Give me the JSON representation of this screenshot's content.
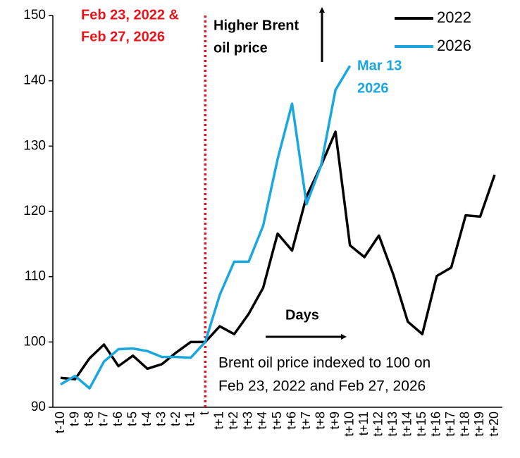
{
  "chart_data": {
    "type": "line",
    "categories": [
      "t-10",
      "t-9",
      "t-8",
      "t-7",
      "t-6",
      "t-5",
      "t-4",
      "t-3",
      "t-2",
      "t-1",
      "t",
      "t+1",
      "t+2",
      "t+3",
      "t+4",
      "t+5",
      "t+6",
      "t+7",
      "t+8",
      "t+9",
      "t+10",
      "t+11",
      "t+12",
      "t+13",
      "t+14",
      "t+15",
      "t+16",
      "t+17",
      "t+18",
      "t+19",
      "t+20"
    ],
    "series": [
      {
        "name": "2022",
        "color": "#000000",
        "values": [
          94.5,
          94.3,
          97.5,
          99.6,
          96.3,
          97.9,
          95.9,
          96.6,
          98.4,
          100,
          100,
          102.4,
          101.2,
          104.3,
          108.3,
          116.6,
          114,
          122.3,
          127,
          132.2,
          114.8,
          113,
          116.3,
          110.3,
          103.1,
          101.2,
          110.1,
          111.4,
          119.4,
          119.2,
          125.6
        ]
      },
      {
        "name": "2026",
        "color": "#1aa7e0",
        "values": [
          93.5,
          94.8,
          92.9,
          97,
          98.9,
          99,
          98.6,
          97.7,
          97.7,
          97.6,
          100,
          107.2,
          112.3,
          112.3,
          117.8,
          128,
          136.5,
          121.1,
          127,
          138.6,
          142.3,
          null,
          null,
          null,
          null,
          null,
          null,
          null,
          null,
          null,
          null
        ]
      }
    ],
    "ylim": [
      90,
      150
    ],
    "yticks": [
      90,
      100,
      110,
      120,
      130,
      140,
      150
    ],
    "grid": false,
    "legend": "upper right",
    "annotations": {
      "event": [
        "Feb 23, 2022 &",
        "Feb 27, 2026"
      ],
      "higher": [
        "Higher Brent",
        "oil price"
      ],
      "latest": [
        "Mar 13",
        "2026"
      ],
      "days": "Days",
      "note": [
        "Brent oil price indexed to 100 on",
        "Feb 23, 2022 and Feb 27, 2026"
      ]
    }
  }
}
